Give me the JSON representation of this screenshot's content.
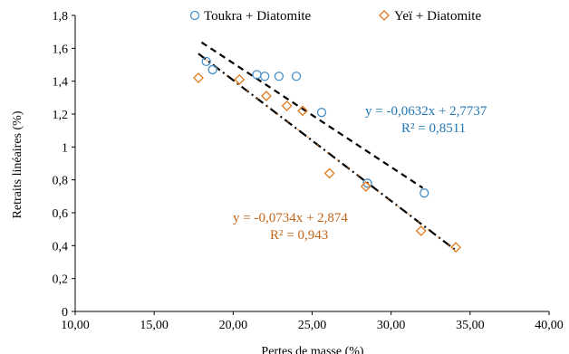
{
  "chart_data": {
    "type": "scatter",
    "xlabel": "Pertes de masse  (%)",
    "ylabel": "Retraits  linéaires  (%)",
    "xlim": [
      10,
      40
    ],
    "ylim": [
      0,
      1.8
    ],
    "x_ticks": [
      10,
      15,
      20,
      25,
      30,
      35,
      40
    ],
    "x_tick_labels": [
      "10,00",
      "15,00",
      "20,00",
      "25,00",
      "30,00",
      "35,00",
      "40,00"
    ],
    "y_ticks": [
      0,
      0.2,
      0.4,
      0.6,
      0.8,
      1,
      1.2,
      1.4,
      1.6,
      1.8
    ],
    "y_tick_labels": [
      "0",
      "0,2",
      "0,4",
      "0,6",
      "0,8",
      "1",
      "1,2",
      "1,4",
      "1,6",
      "1,8"
    ],
    "grid": false,
    "legend_position": "top",
    "series": [
      {
        "name": "Toukra + Diatomite",
        "marker": "circle",
        "color": "#4a90c8",
        "trend_color": "#000000",
        "trend_style": "dashed",
        "equation": "y = -0,0632x + 2,7737",
        "r2": "R² = 0,8511",
        "label_color": "#1f77b4",
        "slope": -0.0632,
        "intercept": 2.7737,
        "trend_x": [
          18,
          32
        ],
        "points": [
          {
            "x": 18.3,
            "y": 1.52
          },
          {
            "x": 18.7,
            "y": 1.47
          },
          {
            "x": 21.5,
            "y": 1.44
          },
          {
            "x": 22.0,
            "y": 1.43
          },
          {
            "x": 22.9,
            "y": 1.43
          },
          {
            "x": 24.0,
            "y": 1.43
          },
          {
            "x": 25.6,
            "y": 1.21
          },
          {
            "x": 28.5,
            "y": 0.78
          },
          {
            "x": 32.1,
            "y": 0.72
          }
        ]
      },
      {
        "name": "Yeï + Diatomite",
        "marker": "diamond",
        "color": "#e07a1f",
        "trend_color": "#000000",
        "trend_style": "dash-dot",
        "equation": "y = -0,0734x + 2,874",
        "r2": "R² = 0,943",
        "label_color": "#c0651a",
        "slope": -0.0734,
        "intercept": 2.874,
        "trend_x": [
          17.8,
          34.1
        ],
        "points": [
          {
            "x": 17.8,
            "y": 1.42
          },
          {
            "x": 20.4,
            "y": 1.41
          },
          {
            "x": 22.1,
            "y": 1.31
          },
          {
            "x": 23.4,
            "y": 1.25
          },
          {
            "x": 24.4,
            "y": 1.22
          },
          {
            "x": 26.1,
            "y": 0.84
          },
          {
            "x": 28.4,
            "y": 0.76
          },
          {
            "x": 31.9,
            "y": 0.49
          },
          {
            "x": 34.1,
            "y": 0.39
          }
        ]
      }
    ]
  }
}
